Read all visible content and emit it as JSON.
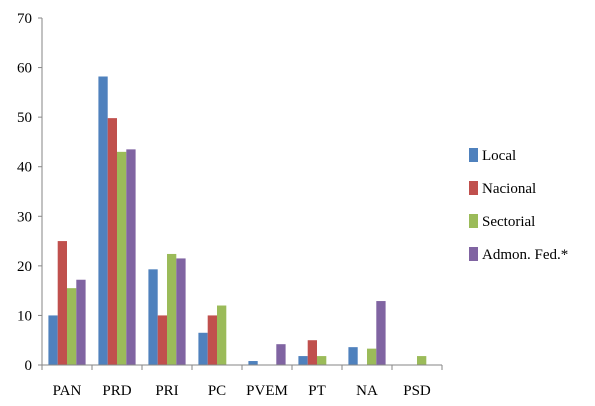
{
  "chart_data": {
    "type": "bar",
    "title": "",
    "xlabel": "",
    "ylabel": "",
    "ylim": [
      0,
      70
    ],
    "yticks": [
      0,
      10,
      20,
      30,
      40,
      50,
      60,
      70
    ],
    "grid": false,
    "legend_position": "right",
    "categories": [
      "PAN",
      "PRD",
      "PRI",
      "PC",
      "PVEM",
      "PT",
      "NA",
      "PSD"
    ],
    "series": [
      {
        "name": "Local",
        "color": "#4F81BD",
        "values": [
          10,
          58.2,
          19.3,
          6.5,
          0.8,
          1.8,
          3.6,
          0
        ]
      },
      {
        "name": "Nacional",
        "color": "#C0504D",
        "values": [
          25,
          49.8,
          10,
          10,
          0,
          5,
          0,
          0
        ]
      },
      {
        "name": "Sectorial",
        "color": "#9BBB59",
        "values": [
          15.5,
          43,
          22.4,
          12,
          0,
          1.8,
          3.3,
          1.8
        ]
      },
      {
        "name": "Admon. Fed.*",
        "color": "#8064A2",
        "values": [
          17.2,
          43.5,
          21.5,
          0,
          4.2,
          0,
          12.9,
          0
        ]
      }
    ]
  }
}
